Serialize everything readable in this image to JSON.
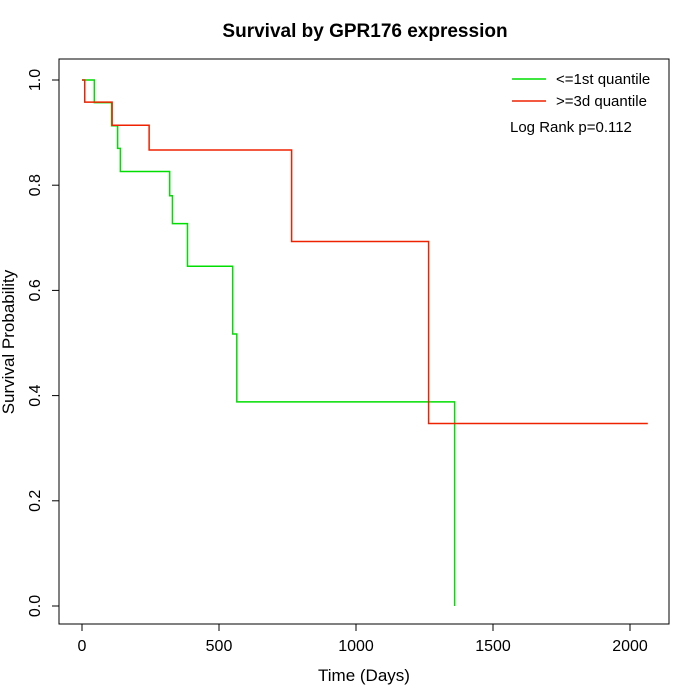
{
  "chart_data": {
    "type": "line",
    "step": true,
    "title": "Survival by GPR176 expression",
    "xlabel": "Time (Days)",
    "ylabel": "Survival Probability",
    "xlim": [
      0,
      2070
    ],
    "ylim": [
      0,
      1.0
    ],
    "x_ticks": [
      0,
      500,
      1000,
      1500,
      2000
    ],
    "x_tick_labels": [
      "0",
      "500",
      "1000",
      "1500",
      "2000"
    ],
    "y_ticks": [
      0.0,
      0.2,
      0.4,
      0.6,
      0.8,
      1.0
    ],
    "y_tick_labels": [
      "0.0",
      "0.2",
      "0.4",
      "0.6",
      "0.8",
      "1.0"
    ],
    "grid": false,
    "legend_position": "top-right",
    "annotation": "Log Rank p=0.112",
    "series": [
      {
        "name": "<=1st quantile",
        "color": "#00dd00",
        "x": [
          0,
          45,
          108,
          130,
          140,
          320,
          330,
          385,
          550,
          565,
          1360
        ],
        "y": [
          1.0,
          0.957,
          0.913,
          0.87,
          0.826,
          0.78,
          0.727,
          0.646,
          0.517,
          0.388,
          0.0
        ]
      },
      {
        "name": ">=3d quantile",
        "color": "#ee2200",
        "x": [
          0,
          10,
          110,
          245,
          765,
          1265,
          2065
        ],
        "y": [
          1.0,
          0.958,
          0.914,
          0.867,
          0.693,
          0.347,
          0.347
        ]
      }
    ]
  }
}
